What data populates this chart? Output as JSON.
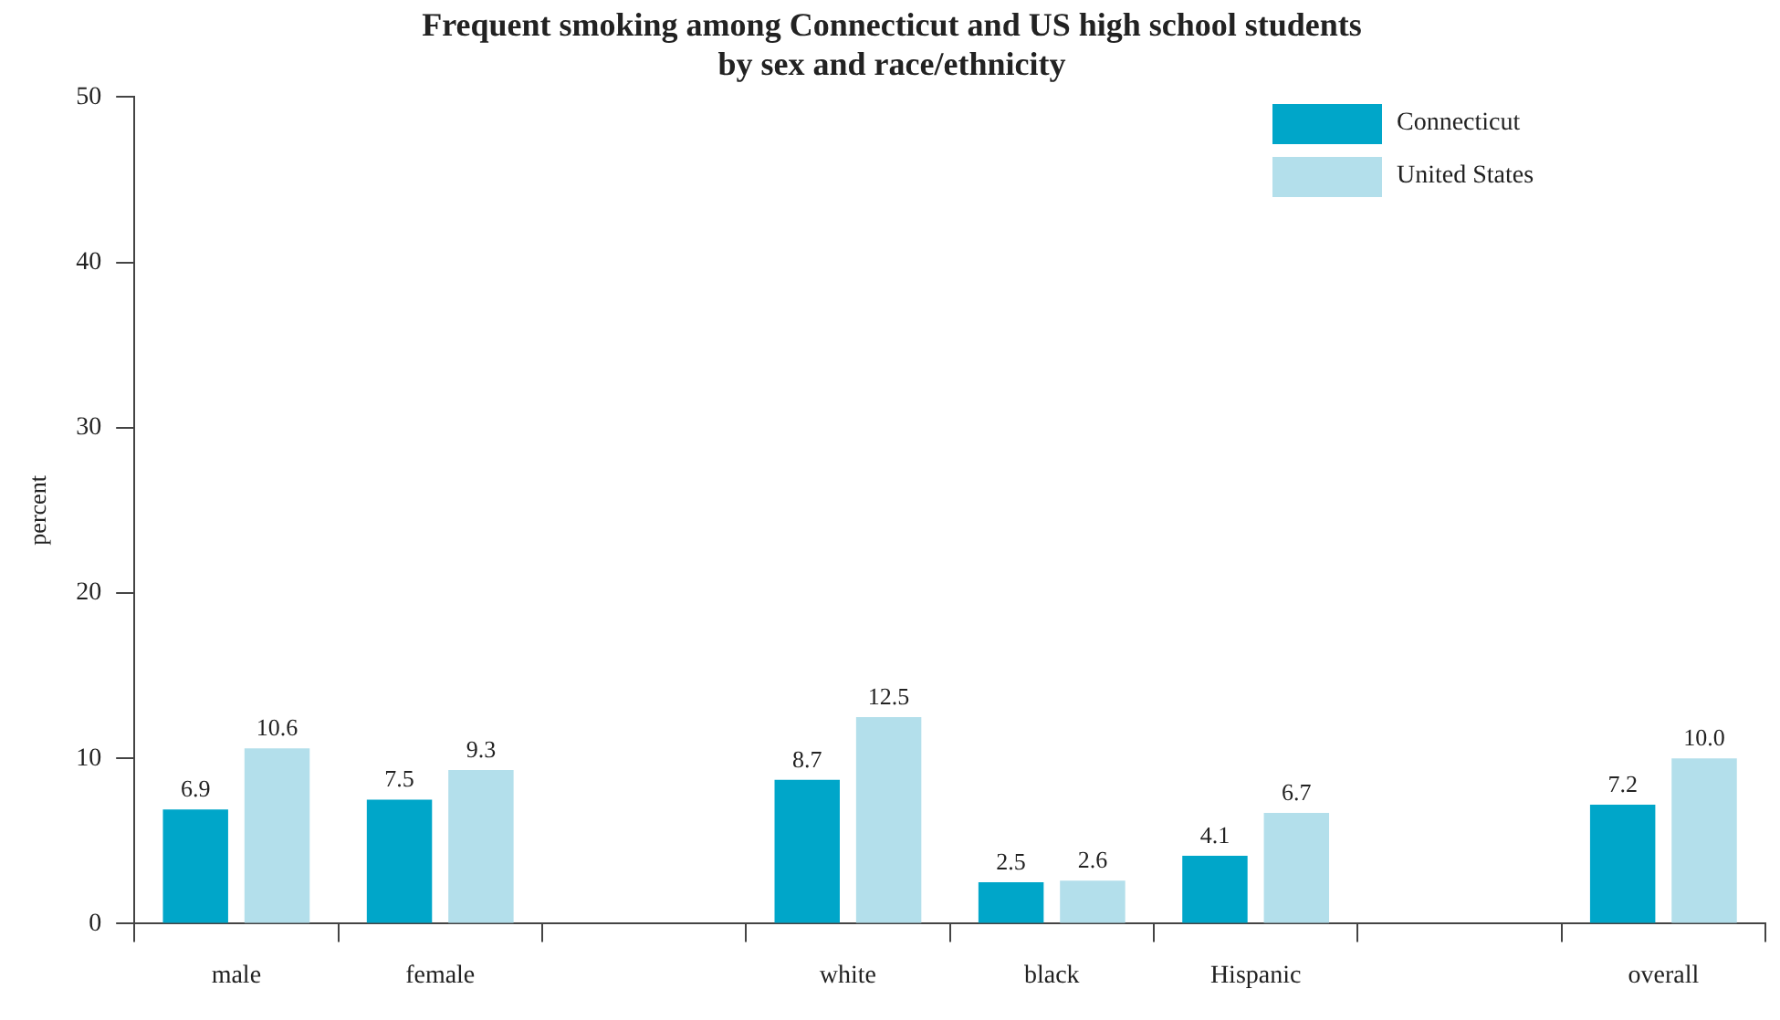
{
  "chart_data": {
    "type": "bar",
    "title": [
      "Frequent smoking among Connecticut and US high school students",
      "by sex and race/ethnicity"
    ],
    "ylabel": "percent",
    "categories": [
      "male",
      "female",
      null,
      "white",
      "black",
      "Hispanic",
      null,
      "overall"
    ],
    "series": [
      {
        "name": "Connecticut",
        "color": "#00a6c9",
        "values": [
          6.9,
          7.5,
          null,
          8.7,
          2.5,
          4.1,
          null,
          7.2
        ]
      },
      {
        "name": "United States",
        "color": "#b3dfeb",
        "values": [
          10.6,
          9.3,
          null,
          12.5,
          2.6,
          6.7,
          null,
          10.0
        ]
      }
    ],
    "ylim": [
      0,
      50
    ],
    "yticks": [
      0,
      10,
      20,
      30,
      40,
      50
    ],
    "grid": false,
    "legend": "top right",
    "value_labels": [
      [
        "6.9",
        "7.5",
        null,
        "8.7",
        "2.5",
        "4.1",
        null,
        "7.2"
      ],
      [
        "10.6",
        "9.3",
        null,
        "12.5",
        "2.6",
        "6.7",
        null,
        "10.0"
      ]
    ]
  }
}
